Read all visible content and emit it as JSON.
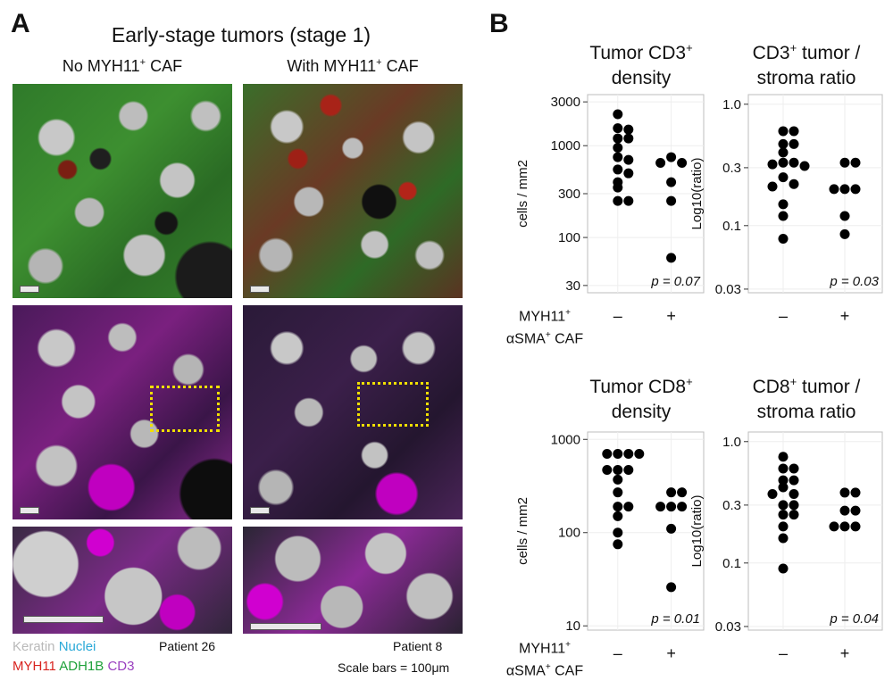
{
  "panel_a": {
    "letter": "A",
    "title": "Early-stage tumors (stage 1)",
    "col_left": "No MYH11",
    "col_right": "With MYH11",
    "col_suffix": "CAF",
    "sup_plus": "+",
    "legend": {
      "keratin": "Keratin",
      "nuclei": "Nuclei",
      "myh11": "MYH11",
      "adh1b": "ADH1B",
      "cd3": "CD3"
    },
    "patient_left": "Patient 26",
    "patient_right": "Patient 8",
    "scale_note": "Scale bars = 100μm",
    "colors": {
      "keratin": "#b9b9b9",
      "nuclei": "#2aa9d8",
      "myh11": "#d8231f",
      "adh1b": "#1fa13a",
      "cd3": "#9a3fbf",
      "zoom_box": "#f1e000"
    }
  },
  "panel_b": {
    "letter": "B",
    "axis_groups": {
      "line1": "MYH11",
      "line2": "αSMA",
      "sup": "+",
      "suffix": "CAF",
      "minus": "–",
      "plus": "+"
    }
  },
  "chart_data": [
    {
      "type": "scatter",
      "title": "Tumor CD3+ density",
      "ylabel": "cells / mm2",
      "yscale": "log",
      "ylim": [
        25,
        3600
      ],
      "yticks": [
        "3000",
        "1000",
        "300",
        "100",
        "30"
      ],
      "ytick_values": [
        3000,
        1000,
        300,
        100,
        30
      ],
      "categories": [
        "–",
        "+"
      ],
      "series": [
        {
          "category": "–",
          "values": [
            2200,
            1550,
            1500,
            1200,
            1200,
            950,
            750,
            700,
            550,
            500,
            400,
            350,
            250,
            250
          ]
        },
        {
          "category": "+",
          "values": [
            750,
            650,
            650,
            400,
            250,
            60
          ]
        }
      ],
      "annotation": "p = 0.07"
    },
    {
      "type": "scatter",
      "title": "CD3+ tumor / stroma ratio",
      "ylabel": "Log10(ratio)",
      "yscale": "log",
      "ylim": [
        0.028,
        1.2
      ],
      "yticks": [
        "1.0",
        "0.3",
        "0.1",
        "0.03"
      ],
      "ytick_values": [
        1.0,
        0.3,
        0.1,
        0.03
      ],
      "categories": [
        "–",
        "+"
      ],
      "series": [
        {
          "category": "–",
          "values": [
            0.6,
            0.6,
            0.47,
            0.47,
            0.4,
            0.33,
            0.33,
            0.32,
            0.31,
            0.25,
            0.22,
            0.21,
            0.15,
            0.12,
            0.078
          ]
        },
        {
          "category": "+",
          "values": [
            0.33,
            0.33,
            0.2,
            0.2,
            0.2,
            0.12,
            0.085
          ]
        }
      ],
      "annotation": "p = 0.03"
    },
    {
      "type": "scatter",
      "title": "Tumor CD8+ density",
      "ylabel": "cells / mm2",
      "yscale": "log",
      "ylim": [
        9,
        1200
      ],
      "yticks": [
        "1000",
        "100",
        "10"
      ],
      "ytick_values": [
        1000,
        100,
        10
      ],
      "categories": [
        "–",
        "+"
      ],
      "series": [
        {
          "category": "–",
          "values": [
            700,
            700,
            700,
            700,
            470,
            470,
            470,
            370,
            270,
            190,
            190,
            150,
            100,
            75
          ]
        },
        {
          "category": "+",
          "values": [
            270,
            270,
            190,
            190,
            190,
            110,
            26
          ]
        }
      ],
      "annotation": "p = 0.01"
    },
    {
      "type": "scatter",
      "title": "CD8+ tumor / stroma ratio",
      "ylabel": "Log10(ratio)",
      "yscale": "log",
      "ylim": [
        0.028,
        1.2
      ],
      "yticks": [
        "1.0",
        "0.3",
        "0.1",
        "0.03"
      ],
      "ytick_values": [
        1.0,
        0.3,
        0.1,
        0.03
      ],
      "categories": [
        "–",
        "+"
      ],
      "series": [
        {
          "category": "–",
          "values": [
            0.75,
            0.6,
            0.6,
            0.48,
            0.48,
            0.42,
            0.37,
            0.37,
            0.3,
            0.3,
            0.25,
            0.25,
            0.2,
            0.16,
            0.09
          ]
        },
        {
          "category": "+",
          "values": [
            0.38,
            0.38,
            0.27,
            0.27,
            0.2,
            0.2,
            0.2
          ]
        }
      ],
      "annotation": "p = 0.04"
    }
  ]
}
